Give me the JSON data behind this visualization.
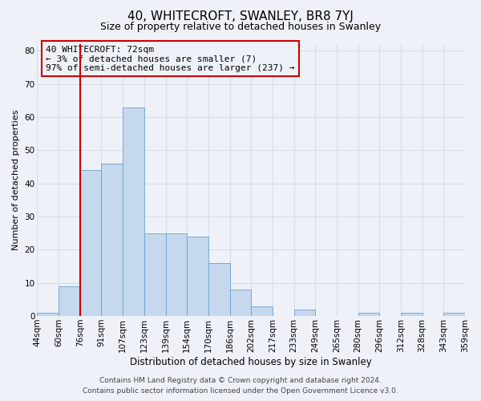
{
  "title": "40, WHITECROFT, SWANLEY, BR8 7YJ",
  "subtitle": "Size of property relative to detached houses in Swanley",
  "xlabel": "Distribution of detached houses by size in Swanley",
  "ylabel": "Number of detached properties",
  "bar_values": [
    1,
    9,
    44,
    46,
    63,
    25,
    25,
    24,
    16,
    8,
    3,
    0,
    2,
    0,
    0,
    1,
    0,
    1,
    0,
    1
  ],
  "bin_labels": [
    "44sqm",
    "60sqm",
    "76sqm",
    "91sqm",
    "107sqm",
    "123sqm",
    "139sqm",
    "154sqm",
    "170sqm",
    "186sqm",
    "202sqm",
    "217sqm",
    "233sqm",
    "249sqm",
    "265sqm",
    "280sqm",
    "296sqm",
    "312sqm",
    "328sqm",
    "343sqm",
    "359sqm"
  ],
  "n_bars": 20,
  "bar_color": "#c5d8ed",
  "bar_edge_color": "#6ba3d0",
  "ylim": [
    0,
    82
  ],
  "vline_bin_index": 2,
  "vline_color": "#cc0000",
  "annotation_text": "40 WHITECROFT: 72sqm\n← 3% of detached houses are smaller (7)\n97% of semi-detached houses are larger (237) →",
  "annotation_box_edge_color": "#cc0000",
  "footer_line1": "Contains HM Land Registry data © Crown copyright and database right 2024.",
  "footer_line2": "Contains public sector information licensed under the Open Government Licence v3.0.",
  "bg_color": "#eef2f8",
  "grid_color": "#d8dde8",
  "title_fontsize": 11,
  "subtitle_fontsize": 9,
  "xlabel_fontsize": 8.5,
  "ylabel_fontsize": 8,
  "tick_fontsize": 7.5,
  "annotation_fontsize": 8,
  "footer_fontsize": 6.5
}
